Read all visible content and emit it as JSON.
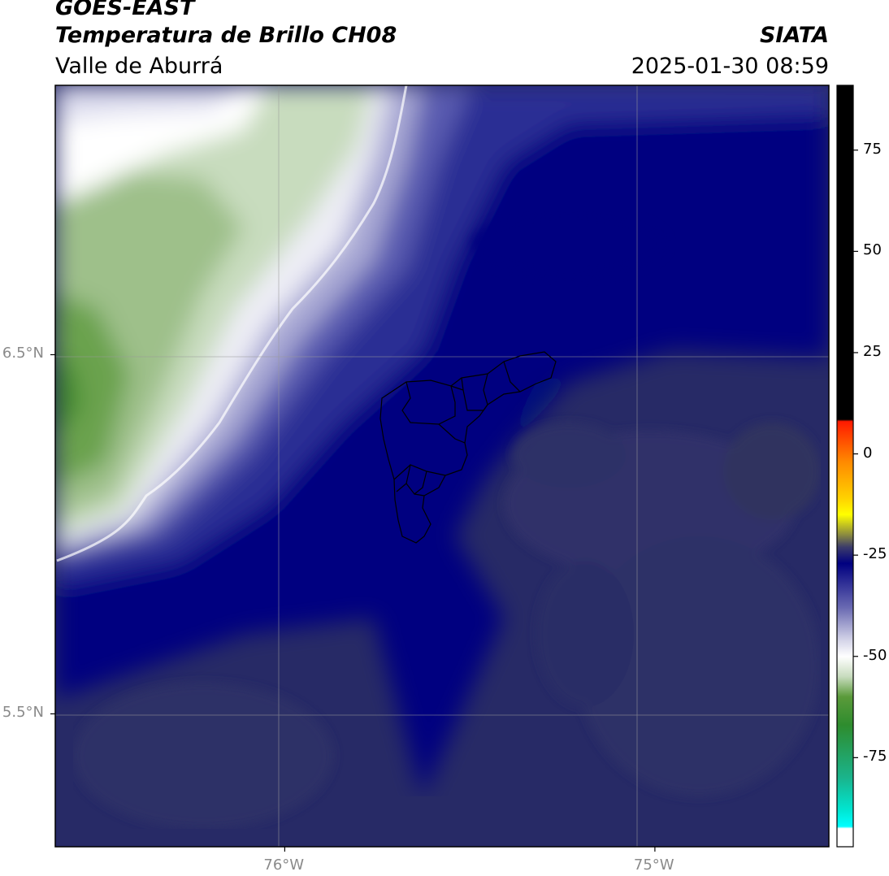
{
  "header": {
    "title": "GOES-EAST",
    "subtitle": "Temperatura de Brillo CH08",
    "region": "Valle de Aburrá",
    "organization": "SIATA",
    "timestamp": "2025-01-30 08:59"
  },
  "map": {
    "variable": "brightness temperature",
    "lon_range": [
      -76.62,
      -74.53
    ],
    "lat_range": [
      5.13,
      7.25
    ],
    "lon_ticks": [
      {
        "value": -76,
        "label": "76°W"
      },
      {
        "value": -75,
        "label": "75°W"
      }
    ],
    "lat_ticks": [
      {
        "value": 6.5,
        "label": "6.5°N"
      },
      {
        "value": 5.5,
        "label": "5.5°N"
      }
    ],
    "gridlines": true,
    "overlay": "Valle de Aburrá municipal boundaries"
  },
  "colorbar": {
    "range": [
      -97,
      91
    ],
    "ticks": [
      {
        "value": 75,
        "label": "75"
      },
      {
        "value": 50,
        "label": "50"
      },
      {
        "value": 25,
        "label": "25"
      },
      {
        "value": 0,
        "label": "0"
      },
      {
        "value": -25,
        "label": "-25"
      },
      {
        "value": -50,
        "label": "-50"
      },
      {
        "value": -75,
        "label": "-75"
      }
    ],
    "stops": [
      {
        "value": 91,
        "color": "#000000"
      },
      {
        "value": 8.5,
        "color": "#000000"
      },
      {
        "value": 8,
        "color": "#ff1a00"
      },
      {
        "value": -2,
        "color": "#ff8a00"
      },
      {
        "value": -11,
        "color": "#ffd200"
      },
      {
        "value": -15,
        "color": "#ffff00"
      },
      {
        "value": -20,
        "color": "#8a8a40"
      },
      {
        "value": -23,
        "color": "#3c3c6a"
      },
      {
        "value": -27,
        "color": "#000080"
      },
      {
        "value": -38,
        "color": "#6a6ab2"
      },
      {
        "value": -46,
        "color": "#d4d4e8"
      },
      {
        "value": -50,
        "color": "#ffffff"
      },
      {
        "value": -55,
        "color": "#c8dcbe"
      },
      {
        "value": -60,
        "color": "#5a9a3a"
      },
      {
        "value": -67,
        "color": "#2e8c2e"
      },
      {
        "value": -80,
        "color": "#1ab48c"
      },
      {
        "value": -88,
        "color": "#00e6d2"
      },
      {
        "value": -92,
        "color": "#00ffff"
      },
      {
        "value": -92.5,
        "color": "#ffffff"
      },
      {
        "value": -97,
        "color": "#ffffff"
      }
    ]
  }
}
